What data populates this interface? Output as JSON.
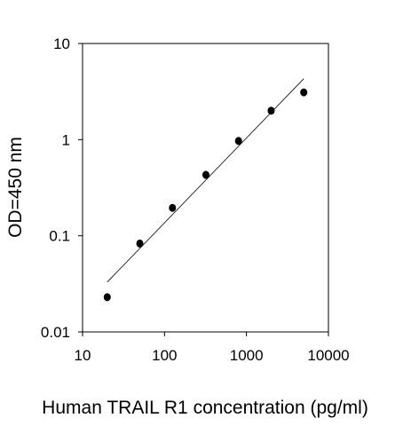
{
  "chart_data": {
    "type": "scatter",
    "title": "",
    "xlabel": "Human TRAIL R1 concentration (pg/ml)",
    "ylabel": "OD=450 nm",
    "x_scale": "log",
    "y_scale": "log",
    "xlim": [
      10,
      10000
    ],
    "ylim": [
      0.01,
      10
    ],
    "x_ticks": [
      10,
      100,
      1000,
      10000
    ],
    "x_tick_labels": [
      "10",
      "100",
      "1000",
      "10000"
    ],
    "y_ticks": [
      0.01,
      0.1,
      1,
      10
    ],
    "y_tick_labels": [
      "0.01",
      "0.1",
      "1",
      "10"
    ],
    "grid": false,
    "series": [
      {
        "points": [
          {
            "x": 20,
            "y": 0.023
          },
          {
            "x": 50,
            "y": 0.083
          },
          {
            "x": 125,
            "y": 0.195
          },
          {
            "x": 320,
            "y": 0.43
          },
          {
            "x": 800,
            "y": 0.97
          },
          {
            "x": 2000,
            "y": 2.0
          },
          {
            "x": 5000,
            "y": 3.1
          }
        ],
        "marker_color": "#000000"
      }
    ],
    "fit_line": {
      "x": [
        20,
        5000
      ],
      "y": [
        0.033,
        4.3
      ],
      "color": "#000000"
    }
  }
}
